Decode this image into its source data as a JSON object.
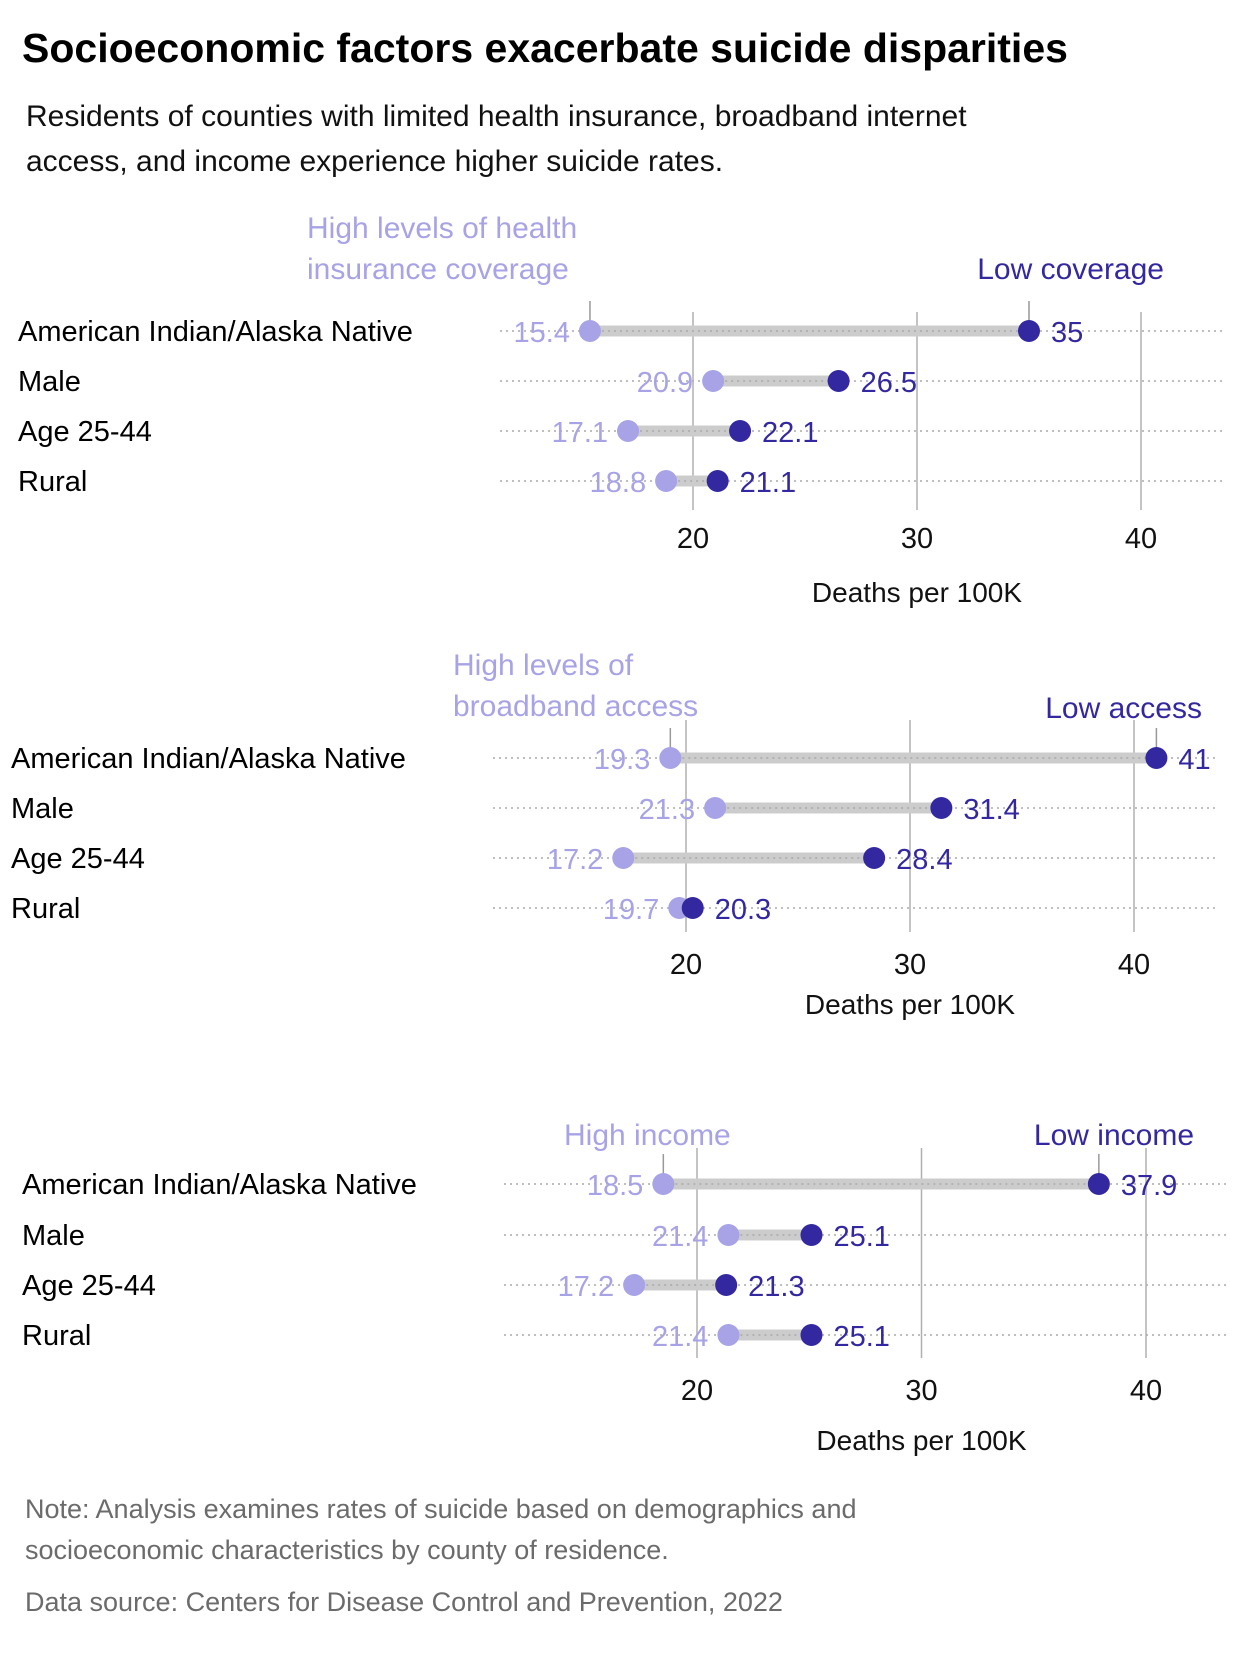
{
  "title": "Socioeconomic factors exacerbate suicide disparities",
  "subtitle_lines": [
    "Residents of counties with limited health insurance, broadband internet",
    "access, and income experience higher suicide rates."
  ],
  "note_lines": [
    "Note: Analysis examines rates of suicide based on demographics and",
    "socioeconomic characteristics by county of residence."
  ],
  "source": "Data source: Centers for Disease Control and Prevention, 2022",
  "colors": {
    "high": "#a7a3e6",
    "low": "#3328a0",
    "connector": "#cccccc",
    "grid": "#b0b0b0",
    "text": "#000000",
    "note": "#6b6b6b"
  },
  "chart_data": [
    {
      "type": "dumbbell",
      "high_label_lines": [
        "High levels of health",
        "insurance coverage"
      ],
      "low_label": "Low coverage",
      "categories": [
        "American Indian/Alaska Native",
        "Male",
        "Age 25-44",
        "Rural"
      ],
      "series": [
        {
          "name": "High levels of health insurance coverage",
          "values": [
            15.4,
            20.9,
            17.1,
            18.8
          ]
        },
        {
          "name": "Low coverage",
          "values": [
            35,
            26.5,
            22.1,
            21.1
          ]
        }
      ],
      "xticks": [
        "20",
        "30",
        "40"
      ],
      "xlabel": "Deaths per 100K"
    },
    {
      "type": "dumbbell",
      "high_label_lines": [
        "High levels of",
        "broadband access"
      ],
      "low_label": "Low access",
      "categories": [
        "American Indian/Alaska Native",
        "Male",
        "Age 25-44",
        "Rural"
      ],
      "series": [
        {
          "name": "High levels of broadband access",
          "values": [
            19.3,
            21.3,
            17.2,
            19.7
          ]
        },
        {
          "name": "Low access",
          "values": [
            41,
            31.4,
            28.4,
            20.3
          ]
        }
      ],
      "xticks": [
        "20",
        "30",
        "40"
      ],
      "xlabel": "Deaths per 100K"
    },
    {
      "type": "dumbbell",
      "high_label_lines": [
        "High income"
      ],
      "low_label": "Low income",
      "categories": [
        "American Indian/Alaska Native",
        "Male",
        "Age 25-44",
        "Rural"
      ],
      "series": [
        {
          "name": "High income",
          "values": [
            18.5,
            21.4,
            17.2,
            21.4
          ]
        },
        {
          "name": "Low income",
          "values": [
            37.9,
            25.1,
            21.3,
            25.1
          ]
        }
      ],
      "xticks": [
        "20",
        "30",
        "40"
      ],
      "xlabel": "Deaths per 100K"
    }
  ]
}
